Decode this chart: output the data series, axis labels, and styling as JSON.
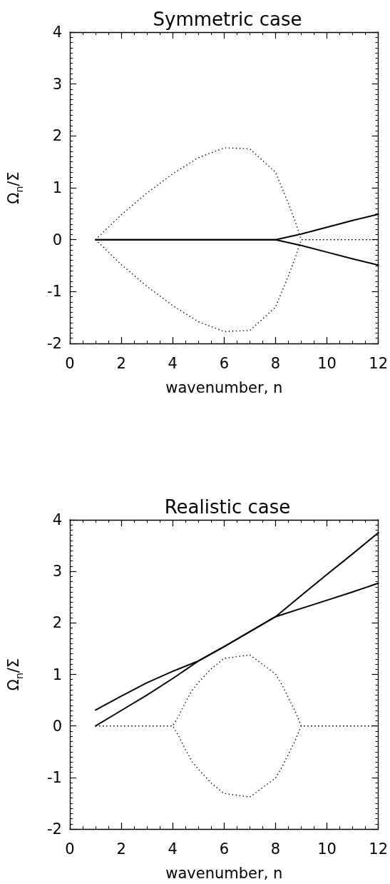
{
  "chart_data": [
    {
      "type": "line",
      "title": "Symmetric case",
      "xlabel": "wavenumber, n",
      "ylabel": "Ω$_{n}$/Σ",
      "xlim": [
        0,
        12
      ],
      "xticks": [
        0,
        2,
        4,
        6,
        8,
        10,
        12
      ],
      "ylim": [
        -2,
        4
      ],
      "yticks": [
        -2,
        -1,
        0,
        1,
        2,
        3,
        4
      ],
      "marker": "none",
      "grid": false,
      "series": [
        {
          "color": "#000000",
          "line_style": "solid",
          "x": [
            1,
            2,
            3,
            4,
            5,
            6,
            7,
            8,
            9,
            10,
            11,
            12
          ],
          "values": [
            0,
            0,
            0,
            0,
            0,
            0,
            0,
            0,
            0.11,
            0.24,
            0.37,
            0.49
          ]
        },
        {
          "color": "#000000",
          "line_style": "solid",
          "x": [
            1,
            2,
            3,
            4,
            5,
            6,
            7,
            8,
            9,
            10,
            11,
            12
          ],
          "values": [
            0,
            0,
            0,
            0,
            0,
            0,
            0,
            0,
            -0.11,
            -0.24,
            -0.37,
            -0.49
          ]
        },
        {
          "color": "#000000",
          "line_style": "dotted",
          "x": [
            1,
            2,
            3,
            4,
            5,
            6,
            7,
            8,
            8.25,
            8.5,
            8.75,
            9,
            10,
            11,
            12
          ],
          "values": [
            0,
            0.48,
            0.9,
            1.27,
            1.58,
            1.77,
            1.75,
            1.3,
            1.0,
            0.7,
            0.37,
            0,
            0,
            0,
            0
          ]
        },
        {
          "color": "#000000",
          "line_style": "dotted",
          "x": [
            1,
            2,
            3,
            4,
            5,
            6,
            7,
            8,
            8.25,
            8.5,
            8.75,
            9,
            10,
            11,
            12
          ],
          "values": [
            0,
            -0.48,
            -0.9,
            -1.27,
            -1.58,
            -1.77,
            -1.75,
            -1.3,
            -1.0,
            -0.7,
            -0.37,
            0,
            0,
            0,
            0
          ]
        }
      ]
    },
    {
      "type": "line",
      "title": "Realistic case",
      "xlabel": "wavenumber, n",
      "ylabel": "Ω$_{n}$/Σ",
      "xlim": [
        0,
        12
      ],
      "xticks": [
        0,
        2,
        4,
        6,
        8,
        10,
        12
      ],
      "ylim": [
        -2,
        4
      ],
      "yticks": [
        -2,
        -1,
        0,
        1,
        2,
        3,
        4
      ],
      "marker": "none",
      "grid": false,
      "series": [
        {
          "color": "#000000",
          "line_style": "solid",
          "x": [
            1,
            2,
            3,
            4,
            5,
            6,
            7,
            8,
            9,
            10,
            11,
            12
          ],
          "values": [
            0.31,
            0.58,
            0.84,
            1.06,
            1.26,
            1.54,
            1.83,
            2.12,
            2.28,
            2.44,
            2.6,
            2.77
          ]
        },
        {
          "color": "#000000",
          "line_style": "solid",
          "x": [
            1,
            2,
            3,
            4,
            5,
            6,
            7,
            8,
            9,
            10,
            11,
            12
          ],
          "values": [
            0,
            0.3,
            0.6,
            0.92,
            1.26,
            1.54,
            1.83,
            2.12,
            2.53,
            2.94,
            3.34,
            3.75
          ]
        },
        {
          "color": "#000000",
          "line_style": "dotted",
          "x": [
            1,
            2,
            3,
            4,
            4.25,
            4.5,
            4.75,
            5,
            5.5,
            6,
            7,
            8,
            8.25,
            8.5,
            8.75,
            9,
            10,
            11,
            12
          ],
          "values": [
            0,
            0,
            0,
            0,
            0.21,
            0.46,
            0.69,
            0.84,
            1.11,
            1.31,
            1.38,
            1.01,
            0.8,
            0.55,
            0.3,
            0,
            0,
            0,
            0
          ]
        },
        {
          "color": "#000000",
          "line_style": "dotted",
          "x": [
            1,
            2,
            3,
            4,
            4.25,
            4.5,
            4.75,
            5,
            5.5,
            6,
            7,
            8,
            8.25,
            8.5,
            8.75,
            9,
            10,
            11,
            12
          ],
          "values": [
            0,
            0,
            0,
            0,
            -0.21,
            -0.46,
            -0.69,
            -0.84,
            -1.11,
            -1.31,
            -1.38,
            -1.01,
            -0.8,
            -0.55,
            -0.3,
            0,
            0,
            0,
            0
          ]
        }
      ]
    }
  ]
}
